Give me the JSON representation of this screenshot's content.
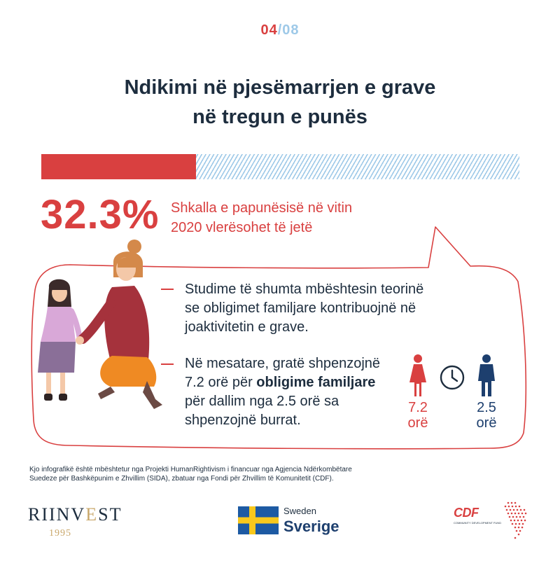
{
  "page": {
    "current": "04",
    "separator": "/",
    "total": "08"
  },
  "title": {
    "line1": "Ndikimi në pjesëmarrjen e grave",
    "line2": "në tregun e punës"
  },
  "unemployment": {
    "value": "32.3%",
    "fraction": 0.323,
    "caption_line1": "Shkalla e papunësisë në vitin",
    "caption_line2": "2020 vlerësohet të jetë"
  },
  "points": [
    {
      "lines": [
        "Studime të shumta mbështesin teorinë",
        "se obligimet familjare kontribuojnë në",
        "joaktivitetin e grave."
      ]
    },
    {
      "line1": "Në mesatare, gratë shpenzojnë",
      "line2_pre": "7.2 orë për ",
      "line2_bold": "obligime familjare",
      "line3": "për dallim nga 2.5 orë sa",
      "line4": "shpenzojnë burrat."
    }
  ],
  "time_comparison": {
    "women": {
      "value": "7.2",
      "unit": "orë",
      "icon": "woman-icon",
      "color": "#d94040"
    },
    "clock_icon": "clock-icon",
    "men": {
      "value": "2.5",
      "unit": "orë",
      "icon": "man-icon",
      "color": "#1d3f6e"
    }
  },
  "footer": {
    "line1": "Kjo infografikë  është mbështetur nga Projekti HumanRightivism i financuar nga Agjencia Ndërkombëtare",
    "line2": "Suedeze për Bashkëpunim e Zhvillim (SIDA), zbatuar nga Fondi për Zhvillim të Komunitetit (CDF)."
  },
  "logos": {
    "riinvest": {
      "name_a": "RIINV",
      "name_b": "E",
      "name_c": "ST",
      "year": "1995"
    },
    "sweden": {
      "top": "Sweden",
      "bottom": "Sverige"
    },
    "cdf": {
      "name": "CDF",
      "tagline": "COMMUNITY DEVELOPMENT FUND"
    }
  },
  "colors": {
    "accent_red": "#d94040",
    "navy": "#1d2d3e",
    "light_blue": "#9ec9e8",
    "gold": "#c9a76a"
  }
}
